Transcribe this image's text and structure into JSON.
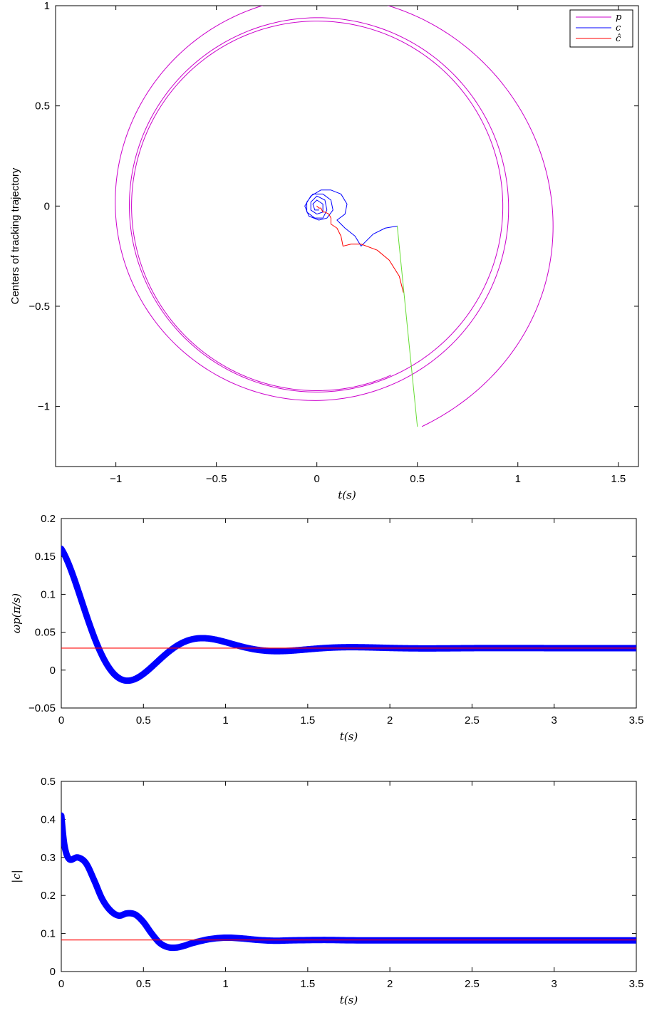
{
  "chart_data": [
    {
      "type": "line",
      "title": "",
      "xlabel": "t(s)",
      "ylabel": "Centers of tracking trajectory",
      "xlim": [
        -1.3,
        1.6
      ],
      "ylim": [
        -1.3,
        1.0
      ],
      "xticks": [
        "−1",
        "−0.5",
        "0",
        "0.5",
        "1",
        "1.5"
      ],
      "xtick_values": [
        -1,
        -0.5,
        0,
        0.5,
        1,
        1.5
      ],
      "yticks": [
        "1",
        "0.5",
        "0",
        "−0.5",
        "−1"
      ],
      "ytick_values": [
        1,
        0.5,
        0,
        -0.5,
        -1
      ],
      "grid": false,
      "legend_position": "top-right",
      "legend": [
        {
          "label": "p",
          "color": "#cc00cc"
        },
        {
          "label": "c",
          "color": "#0000ff"
        },
        {
          "label": "ĉ",
          "color": "#ff0000"
        }
      ],
      "series": [
        {
          "name": "p",
          "color": "#cc00cc",
          "description": "trajectory spiralling from (0.5,-1.1) counter-clockwise onto a circle of radius ~0.92 centred near (0,0)",
          "start": [
            0.5,
            -1.1
          ],
          "start_center": [
            0.02,
            0.0
          ],
          "start_radius": 1.2,
          "end_center": [
            0.0,
            0.0
          ],
          "end_radius": 0.92,
          "turns": 3.0
        },
        {
          "name": "c",
          "color": "#0000ff",
          "points": [
            [
              0.4,
              -0.1
            ],
            [
              0.34,
              -0.11
            ],
            [
              0.28,
              -0.14
            ],
            [
              0.24,
              -0.18
            ],
            [
              0.22,
              -0.2
            ],
            [
              0.19,
              -0.15
            ],
            [
              0.14,
              -0.11
            ],
            [
              0.12,
              -0.09
            ],
            [
              0.1,
              -0.07
            ],
            [
              0.14,
              -0.04
            ],
            [
              0.15,
              0.01
            ],
            [
              0.12,
              0.06
            ],
            [
              0.07,
              0.08
            ],
            [
              0.02,
              0.08
            ],
            [
              -0.03,
              0.05
            ],
            [
              -0.06,
              0.0
            ],
            [
              -0.04,
              -0.05
            ],
            [
              0.01,
              -0.07
            ],
            [
              0.05,
              -0.06
            ],
            [
              0.08,
              -0.02
            ],
            [
              0.07,
              0.03
            ],
            [
              0.03,
              0.06
            ],
            [
              -0.02,
              0.06
            ],
            [
              -0.05,
              0.02
            ],
            [
              -0.05,
              -0.03
            ],
            [
              -0.01,
              -0.06
            ],
            [
              0.03,
              -0.06
            ],
            [
              0.05,
              -0.02
            ],
            [
              0.04,
              0.03
            ],
            [
              0.0,
              0.05
            ],
            [
              -0.03,
              0.02
            ],
            [
              -0.03,
              -0.02
            ],
            [
              0.0,
              -0.04
            ],
            [
              0.03,
              -0.03
            ],
            [
              0.03,
              0.01
            ],
            [
              0.0,
              0.03
            ],
            [
              -0.02,
              0.01
            ],
            [
              -0.01,
              -0.02
            ],
            [
              0.01,
              -0.02
            ]
          ]
        },
        {
          "name": "ĉ",
          "color": "#ff0000",
          "points": [
            [
              0.43,
              -0.43
            ],
            [
              0.41,
              -0.35
            ],
            [
              0.36,
              -0.27
            ],
            [
              0.3,
              -0.22
            ],
            [
              0.22,
              -0.19
            ],
            [
              0.17,
              -0.19
            ],
            [
              0.13,
              -0.2
            ],
            [
              0.12,
              -0.15
            ],
            [
              0.1,
              -0.11
            ],
            [
              0.07,
              -0.09
            ],
            [
              0.07,
              -0.06
            ],
            [
              0.06,
              -0.04
            ],
            [
              0.04,
              -0.03
            ],
            [
              0.03,
              -0.03
            ],
            [
              0.02,
              -0.01
            ],
            [
              0.01,
              -0.01
            ],
            [
              0.0,
              0.0
            ]
          ]
        },
        {
          "name": "",
          "color": "#66dd33",
          "points": [
            [
              0.4,
              -0.1
            ],
            [
              0.5,
              -1.1
            ]
          ]
        }
      ]
    },
    {
      "type": "line",
      "title": "",
      "xlabel": "t(s)",
      "ylabel": "ωp(π/s)",
      "xlim": [
        0,
        3.5
      ],
      "ylim": [
        -0.05,
        0.2
      ],
      "xticks": [
        "0",
        "0.5",
        "1",
        "1.5",
        "2",
        "2.5",
        "3",
        "3.5"
      ],
      "xtick_values": [
        0,
        0.5,
        1,
        1.5,
        2,
        2.5,
        3,
        3.5
      ],
      "yticks": [
        "0.2",
        "0.15",
        "0.1",
        "0.05",
        "0",
        "−0.05"
      ],
      "ytick_values": [
        0.2,
        0.15,
        0.1,
        0.05,
        0,
        -0.05
      ],
      "grid": false,
      "series": [
        {
          "name": "",
          "color": "#0000ff",
          "thick": true,
          "model": {
            "final": 0.029,
            "a1": 0.131,
            "d1": 9.0,
            "w1": 0,
            "a2": 0.0,
            "d2": 0,
            "w2": 0
          }
        },
        {
          "name": "",
          "color": "#ff0000",
          "constant": 0.029
        }
      ]
    },
    {
      "type": "line",
      "title": "",
      "xlabel": "t(s)",
      "ylabel": "|c|",
      "xlim": [
        0,
        3.5
      ],
      "ylim": [
        0,
        0.5
      ],
      "xticks": [
        "0",
        "0.5",
        "1",
        "1.5",
        "2",
        "2.5",
        "3",
        "3.5"
      ],
      "xtick_values": [
        0,
        0.5,
        1,
        1.5,
        2,
        2.5,
        3,
        3.5
      ],
      "yticks": [
        "0.5",
        "0.4",
        "0.3",
        "0.2",
        "0.1",
        "0"
      ],
      "ytick_values": [
        0.5,
        0.4,
        0.3,
        0.2,
        0.1,
        0
      ],
      "grid": false,
      "series": [
        {
          "name": "",
          "color": "#0000ff",
          "thick": true,
          "points": [
            [
              0,
              0.41
            ],
            [
              0.02,
              0.33
            ],
            [
              0.05,
              0.295
            ],
            [
              0.1,
              0.3
            ],
            [
              0.15,
              0.285
            ],
            [
              0.2,
              0.24
            ],
            [
              0.25,
              0.19
            ],
            [
              0.3,
              0.16
            ],
            [
              0.35,
              0.147
            ],
            [
              0.4,
              0.153
            ],
            [
              0.45,
              0.15
            ],
            [
              0.5,
              0.13
            ],
            [
              0.55,
              0.1
            ],
            [
              0.6,
              0.075
            ],
            [
              0.65,
              0.064
            ],
            [
              0.7,
              0.063
            ],
            [
              0.75,
              0.068
            ],
            [
              0.8,
              0.075
            ],
            [
              0.9,
              0.085
            ],
            [
              1.0,
              0.089
            ],
            [
              1.1,
              0.087
            ],
            [
              1.2,
              0.083
            ],
            [
              1.3,
              0.081
            ],
            [
              1.4,
              0.082
            ],
            [
              1.6,
              0.083
            ],
            [
              1.8,
              0.082
            ],
            [
              2.2,
              0.082
            ],
            [
              3.5,
              0.082
            ]
          ]
        },
        {
          "name": "",
          "color": "#ff0000",
          "constant": 0.083
        }
      ]
    }
  ]
}
